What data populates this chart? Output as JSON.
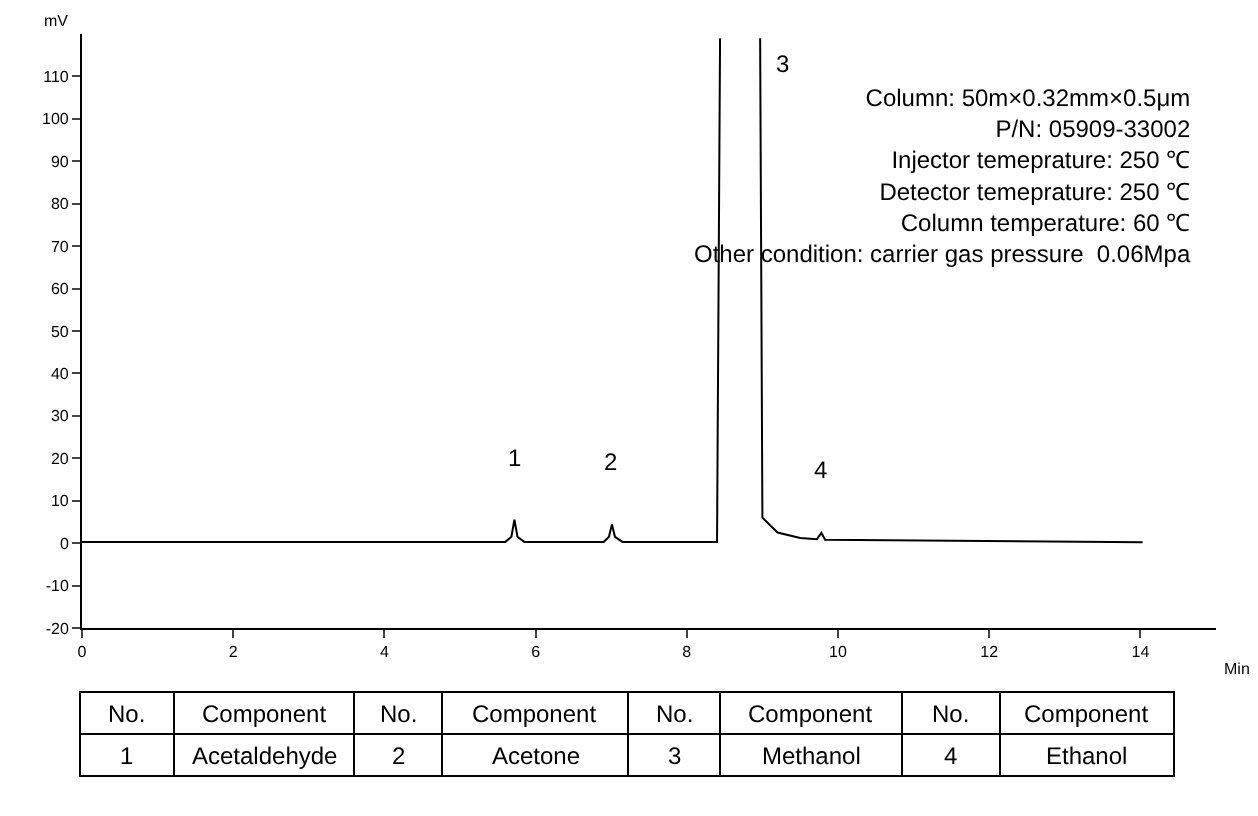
{
  "chart_data": {
    "type": "line",
    "xlabel": "Min",
    "ylabel": "mV",
    "x": [
      0,
      5.6,
      5.68,
      5.72,
      5.76,
      5.85,
      6.9,
      6.97,
      7.01,
      7.05,
      7.15,
      8.4,
      8.44,
      8.7,
      8.97,
      9.0,
      9.2,
      9.5,
      9.72,
      9.78,
      9.83,
      14.03
    ],
    "series": [
      {
        "color": "#000000",
        "values": [
          0.3,
          0.3,
          1.5,
          5.5,
          1.5,
          0.3,
          0.3,
          1.5,
          4.4,
          1.5,
          0.3,
          0.3,
          119,
          null,
          119,
          6,
          2.5,
          1.2,
          0.9,
          2.4,
          0.8,
          0.2
        ]
      }
    ],
    "xlim": [
      0,
      15
    ],
    "xticks": [
      0,
      2,
      4,
      6,
      8,
      10,
      12,
      14
    ],
    "ylim": [
      -20,
      120
    ],
    "yticks": [
      -20,
      -10,
      0,
      10,
      20,
      30,
      40,
      50,
      60,
      70,
      80,
      90,
      100,
      110
    ],
    "marker": "none",
    "line_style": "solid",
    "annotations": [
      {
        "text": "1",
        "x": 5.72,
        "y": 5.5
      },
      {
        "text": "2",
        "x": 7.01,
        "y": 4.4
      },
      {
        "text": "3",
        "x": 8.97,
        "y": 119
      },
      {
        "text": "4",
        "x": 9.78,
        "y": 2.4
      },
      "Column: 50m×0.32mm×0.5μm\nP/N: 05909-33002\nInjector temeprature: 250 ℃\nDetector temeprature: 250 ℃\nColumn temperature: 60 ℃\nOther condition: carrier gas pressure  0.06Mpa",
      "No.",
      "Component",
      "No.",
      "Component",
      "No.",
      "Component",
      "No.",
      "Component",
      "1",
      "Acetaldehyde",
      "2",
      "Acetone",
      "3",
      "Methanol",
      "4",
      "Ethanol"
    ]
  }
}
